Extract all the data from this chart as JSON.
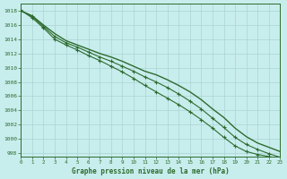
{
  "title": "Graphe pression niveau de la mer (hPa)",
  "background_color": "#c8eded",
  "grid_color": "#aad4d4",
  "line_color": "#2d6b2d",
  "xlim": [
    0,
    23
  ],
  "ylim": [
    997.5,
    1019.0
  ],
  "xticks": [
    0,
    1,
    2,
    3,
    4,
    5,
    6,
    7,
    8,
    9,
    10,
    11,
    12,
    13,
    14,
    15,
    16,
    17,
    18,
    19,
    20,
    21,
    22,
    23
  ],
  "yticks": [
    998,
    1000,
    1002,
    1004,
    1006,
    1008,
    1010,
    1012,
    1014,
    1016,
    1018
  ],
  "series1": [
    1018.0,
    1017.3,
    1016.0,
    1014.8,
    1013.8,
    1013.2,
    1012.6,
    1012.0,
    1011.5,
    1010.9,
    1010.2,
    1009.5,
    1009.0,
    1008.3,
    1007.5,
    1006.6,
    1005.5,
    1004.2,
    1003.0,
    1001.5,
    1000.3,
    999.4,
    998.8,
    998.2
  ],
  "series2": [
    1018.0,
    1017.2,
    1015.8,
    1014.4,
    1013.5,
    1012.9,
    1012.2,
    1011.5,
    1010.9,
    1010.2,
    1009.5,
    1008.7,
    1008.0,
    1007.2,
    1006.3,
    1005.3,
    1004.2,
    1002.9,
    1001.6,
    1000.2,
    999.2,
    998.5,
    997.9,
    997.4
  ],
  "series3": [
    1018.1,
    1017.0,
    1015.6,
    1014.0,
    1013.2,
    1012.5,
    1011.7,
    1011.0,
    1010.2,
    1009.4,
    1008.5,
    1007.5,
    1006.6,
    1005.7,
    1004.8,
    1003.8,
    1002.7,
    1001.5,
    1000.2,
    999.0,
    998.2,
    997.8,
    997.5,
    997.2
  ]
}
